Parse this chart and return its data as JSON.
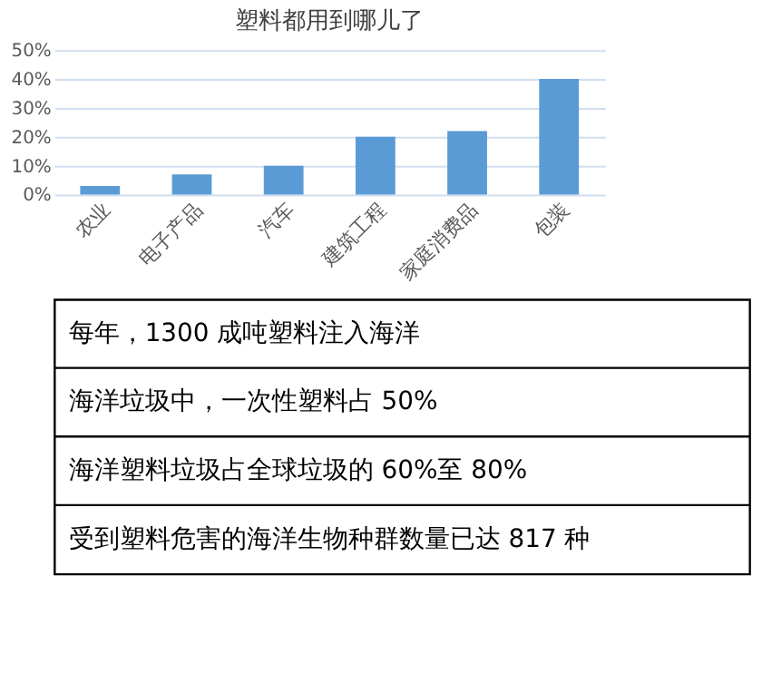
{
  "chart_data": {
    "type": "bar",
    "title": "塑料都用到哪儿了",
    "categories": [
      "农业",
      "电子产品",
      "汽车",
      "建筑工程",
      "家庭消费品",
      "包装"
    ],
    "values": [
      3,
      7,
      10,
      20,
      22,
      40
    ],
    "color": "#5b9bd5",
    "ylim": [
      0,
      50
    ],
    "yticks": [
      {
        "value": 0,
        "label": "0%"
      },
      {
        "value": 10,
        "label": "10%"
      },
      {
        "value": 20,
        "label": "20%"
      },
      {
        "value": 30,
        "label": "30%"
      },
      {
        "value": 40,
        "label": "40%"
      },
      {
        "value": 50,
        "label": "50%"
      }
    ],
    "grid": "y",
    "annotations": [
      "每年，1300 成吨塑料注入海洋",
      "海洋垃圾中，一次性塑料占 50%",
      "海洋塑料垃圾占全球垃圾的 60%至 80%",
      "受到塑料危害的海洋生物种群数量已达 817 种"
    ]
  }
}
